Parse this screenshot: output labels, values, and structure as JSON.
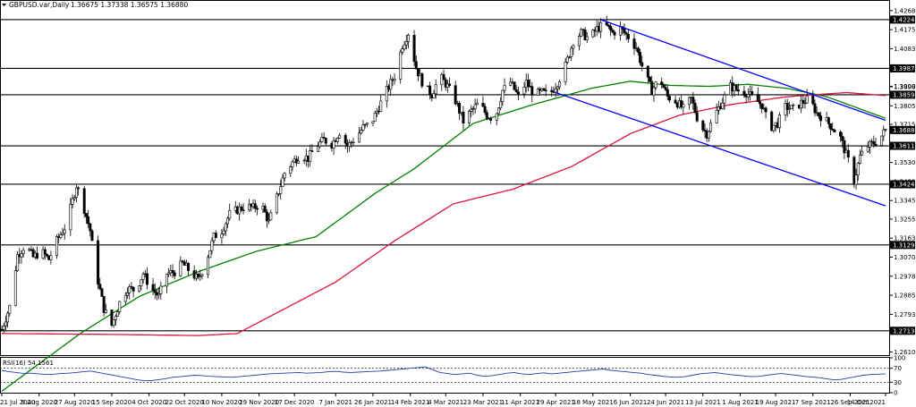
{
  "header": {
    "symbol": "GBPUSD.var,Daily",
    "ohlc": "1.36675 1.37338 1.36575 1.36880"
  },
  "rsi_header": "RSI(16) 54.1561",
  "colors": {
    "background": "#ffffff",
    "candle": "#000000",
    "ma_fast": "#008000",
    "ma_slow": "#dc143c",
    "channel": "#0000ff",
    "hline": "#000000",
    "rsi": "#1e3fa8",
    "label_box": "#000000"
  },
  "chart_data": [
    {
      "type": "candlestick",
      "title": "GBPUSD.var,Daily",
      "ylim": [
        1.2595,
        1.4315
      ],
      "price_ticks": [
        "1.42680",
        "1.41755",
        "1.40830",
        "1.39005",
        "1.38980",
        "1.38055",
        "1.37155",
        "1.35305",
        "1.34380",
        "1.33455",
        "1.32555",
        "1.31630",
        "1.30705",
        "1.29780",
        "1.28855",
        "1.27930",
        "1.26105"
      ],
      "highlighted_levels": [
        {
          "label": "1.42242",
          "value": 1.42242
        },
        {
          "label": "1.39874",
          "value": 1.39874
        },
        {
          "label": "1.38593",
          "value": 1.38593
        },
        {
          "label": "1.36880",
          "value": 1.3688
        },
        {
          "label": "1.36113",
          "value": 1.36113
        },
        {
          "label": "1.34247",
          "value": 1.34247
        },
        {
          "label": "1.31299",
          "value": 1.31299
        },
        {
          "label": "1.27132",
          "value": 1.27132
        }
      ],
      "horizontal_lines": [
        1.42242,
        1.39874,
        1.38593,
        1.36113,
        1.34247,
        1.31299,
        1.27132
      ],
      "x_ticks": [
        {
          "label": "21 Jul 2020",
          "day": 0
        },
        {
          "label": "9 Aug 2020",
          "day": 19
        },
        {
          "label": "27 Aug 2020",
          "day": 37
        },
        {
          "label": "15 Sep 2020",
          "day": 56
        },
        {
          "label": "4 Oct 2020",
          "day": 75
        },
        {
          "label": "22 Oct 2020",
          "day": 93
        },
        {
          "label": "10 Nov 2020",
          "day": 112
        },
        {
          "label": "29 Nov 2020",
          "day": 131
        },
        {
          "label": "17 Dec 2020",
          "day": 149
        },
        {
          "label": "7 Jan 2021",
          "day": 170
        },
        {
          "label": "26 Jan 2021",
          "day": 189
        },
        {
          "label": "14 Feb 2021",
          "day": 208
        },
        {
          "label": "4 Mar 2021",
          "day": 226
        },
        {
          "label": "23 Mar 2021",
          "day": 245
        },
        {
          "label": "11 Apr 2021",
          "day": 264
        },
        {
          "label": "29 Apr 2021",
          "day": 282
        },
        {
          "label": "18 May 2021",
          "day": 301
        },
        {
          "label": "6 Jun 2021",
          "day": 320
        },
        {
          "label": "24 Jun 2021",
          "day": 338
        },
        {
          "label": "13 Jul 2021",
          "day": 357
        },
        {
          "label": "1 Aug 2021",
          "day": 376
        },
        {
          "label": "19 Aug 2021",
          "day": 394
        },
        {
          "label": "7 Sep 2021",
          "day": 413
        },
        {
          "label": "26 Sep 2021",
          "day": 432
        },
        {
          "label": "14 Oct 2021",
          "day": 450
        }
      ],
      "anchors": [
        [
          0,
          1.272
        ],
        [
          4,
          1.283
        ],
        [
          8,
          1.308
        ],
        [
          12,
          1.313
        ],
        [
          16,
          1.307
        ],
        [
          20,
          1.31
        ],
        [
          24,
          1.306
        ],
        [
          28,
          1.315
        ],
        [
          33,
          1.323
        ],
        [
          38,
          1.342
        ],
        [
          41,
          1.334
        ],
        [
          45,
          1.32
        ],
        [
          48,
          1.3
        ],
        [
          52,
          1.282
        ],
        [
          56,
          1.274
        ],
        [
          60,
          1.285
        ],
        [
          64,
          1.292
        ],
        [
          68,
          1.291
        ],
        [
          72,
          1.299
        ],
        [
          76,
          1.292
        ],
        [
          80,
          1.288
        ],
        [
          84,
          1.299
        ],
        [
          88,
          1.3
        ],
        [
          92,
          1.304
        ],
        [
          96,
          1.3
        ],
        [
          100,
          1.296
        ],
        [
          104,
          1.305
        ],
        [
          108,
          1.317
        ],
        [
          112,
          1.32
        ],
        [
          116,
          1.328
        ],
        [
          120,
          1.33
        ],
        [
          124,
          1.332
        ],
        [
          128,
          1.331
        ],
        [
          132,
          1.333
        ],
        [
          136,
          1.324
        ],
        [
          140,
          1.336
        ],
        [
          144,
          1.348
        ],
        [
          148,
          1.353
        ],
        [
          152,
          1.357
        ],
        [
          156,
          1.355
        ],
        [
          160,
          1.361
        ],
        [
          164,
          1.364
        ],
        [
          168,
          1.362
        ],
        [
          172,
          1.368
        ],
        [
          176,
          1.361
        ],
        [
          180,
          1.365
        ],
        [
          184,
          1.37
        ],
        [
          188,
          1.372
        ],
        [
          192,
          1.38
        ],
        [
          196,
          1.388
        ],
        [
          200,
          1.395
        ],
        [
          204,
          1.41
        ],
        [
          207,
          1.416
        ],
        [
          211,
          1.399
        ],
        [
          215,
          1.39
        ],
        [
          219,
          1.386
        ],
        [
          223,
          1.395
        ],
        [
          227,
          1.39
        ],
        [
          231,
          1.383
        ],
        [
          235,
          1.373
        ],
        [
          239,
          1.378
        ],
        [
          243,
          1.382
        ],
        [
          247,
          1.376
        ],
        [
          251,
          1.374
        ],
        [
          255,
          1.388
        ],
        [
          259,
          1.392
        ],
        [
          263,
          1.385
        ],
        [
          267,
          1.392
        ],
        [
          271,
          1.386
        ],
        [
          275,
          1.387
        ],
        [
          279,
          1.386
        ],
        [
          283,
          1.392
        ],
        [
          287,
          1.4
        ],
        [
          291,
          1.412
        ],
        [
          295,
          1.416
        ],
        [
          299,
          1.413
        ],
        [
          303,
          1.418
        ],
        [
          307,
          1.42
        ],
        [
          311,
          1.416
        ],
        [
          315,
          1.418
        ],
        [
          319,
          1.414
        ],
        [
          323,
          1.409
        ],
        [
          327,
          1.397
        ],
        [
          331,
          1.388
        ],
        [
          335,
          1.394
        ],
        [
          339,
          1.385
        ],
        [
          343,
          1.383
        ],
        [
          347,
          1.379
        ],
        [
          351,
          1.384
        ],
        [
          355,
          1.372
        ],
        [
          359,
          1.367
        ],
        [
          363,
          1.376
        ],
        [
          367,
          1.383
        ],
        [
          371,
          1.39
        ],
        [
          375,
          1.388
        ],
        [
          379,
          1.387
        ],
        [
          383,
          1.384
        ],
        [
          387,
          1.381
        ],
        [
          391,
          1.37
        ],
        [
          395,
          1.372
        ],
        [
          399,
          1.38
        ],
        [
          403,
          1.379
        ],
        [
          407,
          1.382
        ],
        [
          411,
          1.384
        ],
        [
          415,
          1.377
        ],
        [
          419,
          1.374
        ],
        [
          423,
          1.37
        ],
        [
          427,
          1.365
        ],
        [
          431,
          1.354
        ],
        [
          434,
          1.344
        ],
        [
          437,
          1.356
        ],
        [
          441,
          1.361
        ],
        [
          445,
          1.363
        ],
        [
          448,
          1.366
        ],
        [
          450,
          1.3688
        ]
      ],
      "moving_averages": [
        {
          "color": "green",
          "points": [
            [
              0,
              1.242
            ],
            [
              40,
              1.27
            ],
            [
              70,
              1.288
            ],
            [
              100,
              1.3
            ],
            [
              130,
              1.31
            ],
            [
              160,
              1.317
            ],
            [
              190,
              1.338
            ],
            [
              210,
              1.35
            ],
            [
              240,
              1.372
            ],
            [
              270,
              1.381
            ],
            [
              300,
              1.389
            ],
            [
              320,
              1.3925
            ],
            [
              340,
              1.3905
            ],
            [
              360,
              1.39
            ],
            [
              380,
              1.391
            ],
            [
              400,
              1.389
            ],
            [
              420,
              1.385
            ],
            [
              440,
              1.378
            ],
            [
              450,
              1.3745
            ]
          ]
        },
        {
          "color": "red",
          "points": [
            [
              0,
              1.27
            ],
            [
              60,
              1.2695
            ],
            [
              100,
              1.269
            ],
            [
              120,
              1.27
            ],
            [
              130,
              1.275
            ],
            [
              170,
              1.295
            ],
            [
              200,
              1.315
            ],
            [
              230,
              1.333
            ],
            [
              260,
              1.34
            ],
            [
              290,
              1.351
            ],
            [
              320,
              1.367
            ],
            [
              345,
              1.376
            ],
            [
              370,
              1.381
            ],
            [
              400,
              1.385
            ],
            [
              430,
              1.387
            ],
            [
              450,
              1.3855
            ]
          ]
        }
      ],
      "channel_lines": [
        {
          "start": [
            305,
            1.4224
          ],
          "end": [
            450,
            1.3735
          ]
        },
        {
          "start": [
            282,
            1.387
          ],
          "end": [
            450,
            1.332
          ]
        }
      ]
    },
    {
      "type": "line",
      "title": "RSI(16) 54.1561",
      "ylim": [
        0,
        100
      ],
      "ticks": [
        "100",
        "70",
        "30",
        "0"
      ],
      "levels": [
        70,
        30
      ],
      "values": [
        64,
        60,
        58,
        55,
        56,
        54,
        52,
        53,
        55,
        56,
        58,
        60,
        62,
        58,
        54,
        50,
        46,
        42,
        38,
        35,
        34,
        37,
        40,
        44,
        46,
        48,
        50,
        49,
        47,
        46,
        45,
        44,
        46,
        48,
        50,
        52,
        54,
        55,
        56,
        57,
        58,
        56,
        57,
        58,
        60,
        61,
        59,
        58,
        59,
        60,
        61,
        62,
        64,
        66,
        68,
        70,
        72,
        74,
        66,
        58,
        55,
        52,
        54,
        56,
        50,
        47,
        49,
        52,
        56,
        58,
        54,
        52,
        55,
        57,
        54,
        56,
        58,
        60,
        62,
        64,
        66,
        68,
        64,
        62,
        60,
        58,
        56,
        52,
        50,
        47,
        45,
        44,
        46,
        50,
        54,
        56,
        58,
        55,
        52,
        50,
        48,
        46,
        47,
        50,
        53,
        55,
        52,
        50,
        47,
        45,
        43,
        40,
        37,
        38,
        42,
        46,
        50,
        52,
        53,
        54
      ]
    }
  ]
}
